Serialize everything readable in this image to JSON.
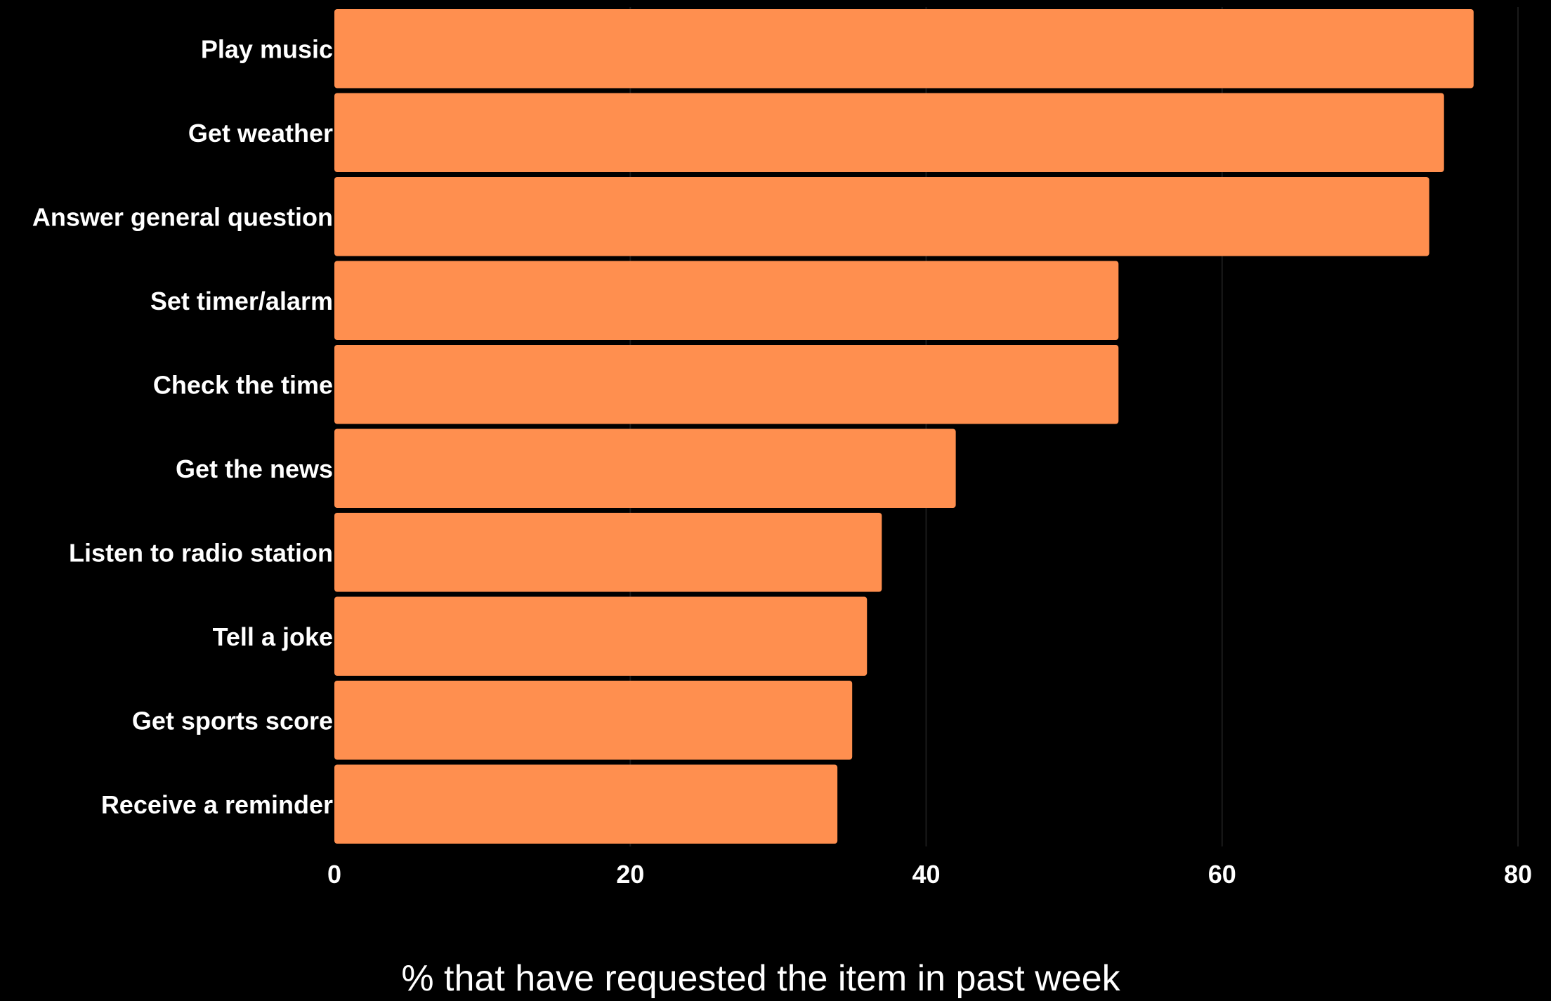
{
  "chart_data": {
    "type": "bar",
    "orientation": "horizontal",
    "categories": [
      "Play music",
      "Get weather",
      "Answer general question",
      "Set timer/alarm",
      "Check the time",
      "Get the news",
      "Listen to radio station",
      "Tell a joke",
      "Get sports score",
      "Receive a reminder"
    ],
    "values": [
      77,
      75,
      74,
      53,
      53,
      42,
      37,
      36,
      35,
      34
    ],
    "xlabel": "% that have requested the item in past week",
    "ylabel": "",
    "xlim": [
      0,
      80
    ],
    "xticks": [
      "0",
      "20",
      "40",
      "60",
      "80"
    ],
    "grid": "vertical",
    "legend": "none",
    "colors": {
      "bar": "#ff8f4f",
      "background": "#000000",
      "text": "#ffffff",
      "grid": "#1a1a1a"
    }
  }
}
